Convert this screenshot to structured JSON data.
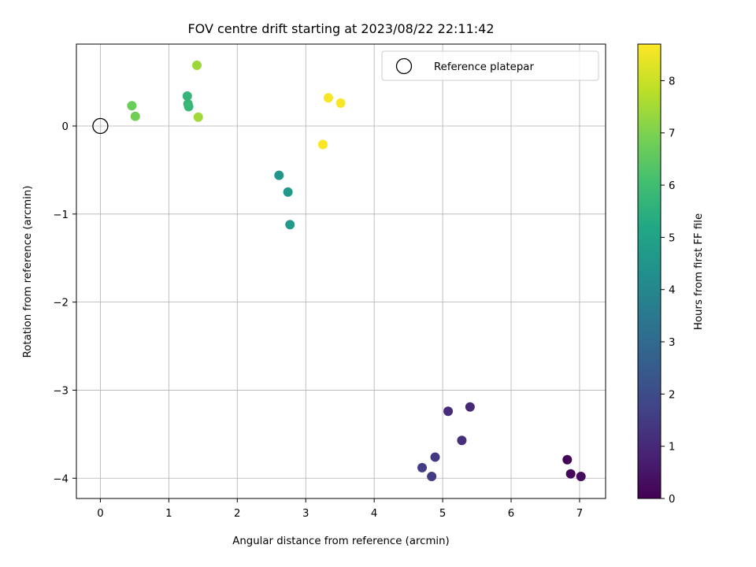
{
  "chart_data": {
    "type": "scatter",
    "title": "FOV centre drift starting at 2023/08/22 22:11:42",
    "xlabel": "Angular distance from reference (arcmin)",
    "ylabel": "Rotation from reference (arcmin)",
    "xlim": [
      -0.35,
      7.38
    ],
    "ylim": [
      -4.23,
      0.93
    ],
    "xticks": [
      0,
      1,
      2,
      3,
      4,
      5,
      6,
      7
    ],
    "yticks": [
      -4,
      -3,
      -2,
      -1,
      0
    ],
    "xtick_labels": [
      "0",
      "1",
      "2",
      "3",
      "4",
      "5",
      "6",
      "7"
    ],
    "ytick_labels": [
      "−4",
      "−3",
      "−2",
      "−1",
      "0"
    ],
    "grid": true,
    "legend": {
      "position": "top-right",
      "entries": [
        "Reference platepar"
      ]
    },
    "reference_point": {
      "x": 0,
      "y": 0
    },
    "colorbar": {
      "label": "Hours from first FF file",
      "colormap": "viridis",
      "range": [
        0,
        8.7
      ],
      "ticks": [
        0,
        1,
        2,
        3,
        4,
        5,
        6,
        7,
        8
      ],
      "tick_labels": [
        "0",
        "1",
        "2",
        "3",
        "4",
        "5",
        "6",
        "7",
        "8"
      ]
    },
    "points": [
      {
        "x": 6.82,
        "y": -3.79,
        "hours": 0.05
      },
      {
        "x": 6.87,
        "y": -3.95,
        "hours": 0.15
      },
      {
        "x": 7.02,
        "y": -3.98,
        "hours": 0.25
      },
      {
        "x": 5.4,
        "y": -3.19,
        "hours": 1.0
      },
      {
        "x": 5.08,
        "y": -3.24,
        "hours": 1.1
      },
      {
        "x": 5.28,
        "y": -3.57,
        "hours": 1.15
      },
      {
        "x": 4.89,
        "y": -3.76,
        "hours": 1.45
      },
      {
        "x": 4.7,
        "y": -3.88,
        "hours": 1.55
      },
      {
        "x": 4.84,
        "y": -3.98,
        "hours": 1.5
      },
      {
        "x": 2.61,
        "y": -0.56,
        "hours": 4.5
      },
      {
        "x": 2.74,
        "y": -0.75,
        "hours": 4.6
      },
      {
        "x": 2.77,
        "y": -1.12,
        "hours": 4.7
      },
      {
        "x": 1.27,
        "y": 0.34,
        "hours": 5.7
      },
      {
        "x": 1.28,
        "y": 0.25,
        "hours": 5.75
      },
      {
        "x": 1.29,
        "y": 0.22,
        "hours": 5.8
      },
      {
        "x": 0.46,
        "y": 0.23,
        "hours": 6.7
      },
      {
        "x": 0.51,
        "y": 0.11,
        "hours": 6.8
      },
      {
        "x": 1.41,
        "y": 0.69,
        "hours": 7.4
      },
      {
        "x": 1.43,
        "y": 0.1,
        "hours": 7.45
      },
      {
        "x": 3.33,
        "y": 0.32,
        "hours": 8.6
      },
      {
        "x": 3.51,
        "y": 0.26,
        "hours": 8.6
      },
      {
        "x": 3.25,
        "y": -0.21,
        "hours": 8.65
      }
    ]
  }
}
